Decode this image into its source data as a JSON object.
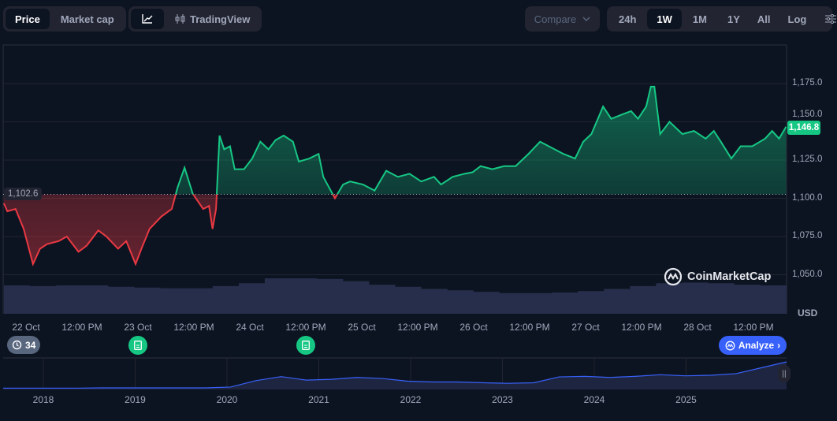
{
  "toolbar": {
    "view_tabs": [
      {
        "label": "Price",
        "active": true
      },
      {
        "label": "Market cap",
        "active": false
      }
    ],
    "chart_type": {
      "line_icon": "line-chart-icon",
      "tradingview_icon": "candlestick-icon",
      "tradingview_label": "TradingView"
    },
    "compare_label": "Compare",
    "ranges": [
      {
        "label": "24h",
        "active": false
      },
      {
        "label": "1W",
        "active": true
      },
      {
        "label": "1M",
        "active": false
      },
      {
        "label": "1Y",
        "active": false
      },
      {
        "label": "All",
        "active": false
      }
    ],
    "log_label": "Log",
    "settings_icon": "sliders-icon"
  },
  "colors": {
    "up": "#16c784",
    "down": "#ea3943",
    "background": "#0d1421",
    "accent": "#3861fb"
  },
  "watermark": "CoinMarketCap",
  "currency": "USD",
  "badges": {
    "current_price": "1,146.8",
    "baseline_price": "1,102.6"
  },
  "history_badge": {
    "icon": "history-icon",
    "count": "34"
  },
  "analyze_button": "Analyze",
  "chart_data": {
    "type": "area",
    "baseline": 1102.6,
    "ylim": [
      1040,
      1195
    ],
    "y_ticks": [
      "1,175.0",
      "1,150.0",
      "1,125.0",
      "1,100.0",
      "1,075.0",
      "1,050.0"
    ],
    "y_tick_values": [
      1175,
      1150,
      1125,
      1100,
      1075,
      1050
    ],
    "x_ticks": [
      {
        "t": "2025-10-22T00:00",
        "label": "22 Oct"
      },
      {
        "t": "2025-10-22T12:00",
        "label": "12:00 PM"
      },
      {
        "t": "2025-10-23T00:00",
        "label": "23 Oct"
      },
      {
        "t": "2025-10-23T12:00",
        "label": "12:00 PM"
      },
      {
        "t": "2025-10-24T00:00",
        "label": "24 Oct"
      },
      {
        "t": "2025-10-24T12:00",
        "label": "12:00 PM"
      },
      {
        "t": "2025-10-25T00:00",
        "label": "25 Oct"
      },
      {
        "t": "2025-10-25T12:00",
        "label": "12:00 PM"
      },
      {
        "t": "2025-10-26T00:00",
        "label": "26 Oct"
      },
      {
        "t": "2025-10-26T12:00",
        "label": "12:00 PM"
      },
      {
        "t": "2025-10-27T00:00",
        "label": "27 Oct"
      },
      {
        "t": "2025-10-27T12:00",
        "label": "12:00 PM"
      },
      {
        "t": "2025-10-28T00:00",
        "label": "28 Oct"
      },
      {
        "t": "2025-10-28T12:00",
        "label": "12:00 PM"
      }
    ],
    "series": [
      [
        "2025-10-21T19:15",
        1096.7
      ],
      [
        "2025-10-21T20:00",
        1091.5
      ],
      [
        "2025-10-21T21:45",
        1093
      ],
      [
        "2025-10-21T23:30",
        1080
      ],
      [
        "2025-10-22T01:30",
        1057
      ],
      [
        "2025-10-22T03:00",
        1067
      ],
      [
        "2025-10-22T04:30",
        1070
      ],
      [
        "2025-10-22T07:00",
        1072
      ],
      [
        "2025-10-22T08:45",
        1075
      ],
      [
        "2025-10-22T11:15",
        1065
      ],
      [
        "2025-10-22T13:00",
        1069
      ],
      [
        "2025-10-22T15:30",
        1079
      ],
      [
        "2025-10-22T17:15",
        1075
      ],
      [
        "2025-10-22T19:45",
        1067
      ],
      [
        "2025-10-22T21:30",
        1072
      ],
      [
        "2025-10-22T23:30",
        1057
      ],
      [
        "2025-10-23T00:45",
        1067
      ],
      [
        "2025-10-23T02:30",
        1080
      ],
      [
        "2025-10-23T05:00",
        1088
      ],
      [
        "2025-10-23T07:15",
        1093
      ],
      [
        "2025-10-23T08:30",
        1107
      ],
      [
        "2025-10-23T10:00",
        1120
      ],
      [
        "2025-10-23T11:45",
        1103
      ],
      [
        "2025-10-23T14:00",
        1093
      ],
      [
        "2025-10-23T15:15",
        1095
      ],
      [
        "2025-10-23T16:00",
        1080
      ],
      [
        "2025-10-23T16:45",
        1093
      ],
      [
        "2025-10-23T17:30",
        1141
      ],
      [
        "2025-10-23T18:30",
        1132
      ],
      [
        "2025-10-23T19:45",
        1134
      ],
      [
        "2025-10-23T20:45",
        1119
      ],
      [
        "2025-10-23T22:45",
        1119
      ],
      [
        "2025-10-24T00:30",
        1126
      ],
      [
        "2025-10-24T02:15",
        1137
      ],
      [
        "2025-10-24T04:00",
        1132
      ],
      [
        "2025-10-24T05:30",
        1138
      ],
      [
        "2025-10-24T07:15",
        1141
      ],
      [
        "2025-10-24T09:15",
        1137
      ],
      [
        "2025-10-24T10:30",
        1124
      ],
      [
        "2025-10-24T12:45",
        1126
      ],
      [
        "2025-10-24T14:45",
        1129
      ],
      [
        "2025-10-24T15:45",
        1114
      ],
      [
        "2025-10-24T17:00",
        1107
      ],
      [
        "2025-10-24T18:15",
        1100
      ],
      [
        "2025-10-24T20:00",
        1109
      ],
      [
        "2025-10-24T21:30",
        1111
      ],
      [
        "2025-10-25T00:15",
        1109
      ],
      [
        "2025-10-25T02:45",
        1105
      ],
      [
        "2025-10-25T05:15",
        1118
      ],
      [
        "2025-10-25T07:45",
        1114
      ],
      [
        "2025-10-25T10:15",
        1116
      ],
      [
        "2025-10-25T12:45",
        1111
      ],
      [
        "2025-10-25T15:30",
        1114
      ],
      [
        "2025-10-25T17:00",
        1109
      ],
      [
        "2025-10-25T19:30",
        1114
      ],
      [
        "2025-10-25T22:00",
        1116
      ],
      [
        "2025-10-25T23:45",
        1117
      ],
      [
        "2025-10-26T01:30",
        1121
      ],
      [
        "2025-10-26T04:00",
        1119
      ],
      [
        "2025-10-26T06:30",
        1121
      ],
      [
        "2025-10-26T09:00",
        1121
      ],
      [
        "2025-10-26T11:45",
        1129
      ],
      [
        "2025-10-26T14:15",
        1137
      ],
      [
        "2025-10-26T16:45",
        1133
      ],
      [
        "2025-10-26T19:15",
        1129
      ],
      [
        "2025-10-26T21:45",
        1126
      ],
      [
        "2025-10-26T23:30",
        1137
      ],
      [
        "2025-10-27T01:15",
        1142
      ],
      [
        "2025-10-27T03:45",
        1160
      ],
      [
        "2025-10-27T05:30",
        1152
      ],
      [
        "2025-10-27T08:00",
        1155
      ],
      [
        "2025-10-27T09:45",
        1157
      ],
      [
        "2025-10-27T11:15",
        1152
      ],
      [
        "2025-10-27T13:00",
        1160
      ],
      [
        "2025-10-27T14:00",
        1173
      ],
      [
        "2025-10-27T14:45",
        1173
      ],
      [
        "2025-10-27T16:00",
        1142
      ],
      [
        "2025-10-27T18:00",
        1150
      ],
      [
        "2025-10-27T20:45",
        1142
      ],
      [
        "2025-10-27T23:15",
        1144
      ],
      [
        "2025-10-28T01:45",
        1139
      ],
      [
        "2025-10-28T03:30",
        1144
      ],
      [
        "2025-10-28T05:00",
        1137
      ],
      [
        "2025-10-28T07:15",
        1126
      ],
      [
        "2025-10-28T09:15",
        1134
      ],
      [
        "2025-10-28T11:45",
        1134
      ],
      [
        "2025-10-28T14:30",
        1139
      ],
      [
        "2025-10-28T16:00",
        1144
      ],
      [
        "2025-10-28T17:30",
        1139
      ],
      [
        "2025-10-28T19:00",
        1146.8
      ]
    ],
    "volume_relative": [
      0.8,
      0.78,
      0.8,
      0.8,
      0.76,
      0.74,
      0.72,
      0.72,
      0.78,
      0.86,
      1.0,
      1.0,
      0.98,
      0.92,
      0.82,
      0.76,
      0.7,
      0.66,
      0.62,
      0.58,
      0.58,
      0.6,
      0.64,
      0.7,
      0.78,
      0.86,
      0.88,
      0.86,
      0.82,
      0.8
    ],
    "events": [
      {
        "t": "2025-10-23T00:00",
        "icon": "document-icon"
      },
      {
        "t": "2025-10-24T12:00",
        "icon": "document-icon"
      }
    ]
  },
  "overview": {
    "years": [
      "2018",
      "2019",
      "2020",
      "2021",
      "2022",
      "2023",
      "2024",
      "2025"
    ],
    "values_relative": [
      0.02,
      0.02,
      0.02,
      0.02,
      0.03,
      0.03,
      0.03,
      0.03,
      0.03,
      0.06,
      0.3,
      0.45,
      0.32,
      0.35,
      0.42,
      0.38,
      0.28,
      0.25,
      0.25,
      0.22,
      0.2,
      0.22,
      0.44,
      0.46,
      0.42,
      0.46,
      0.52,
      0.48,
      0.5,
      0.56,
      0.78,
      1.0
    ]
  }
}
